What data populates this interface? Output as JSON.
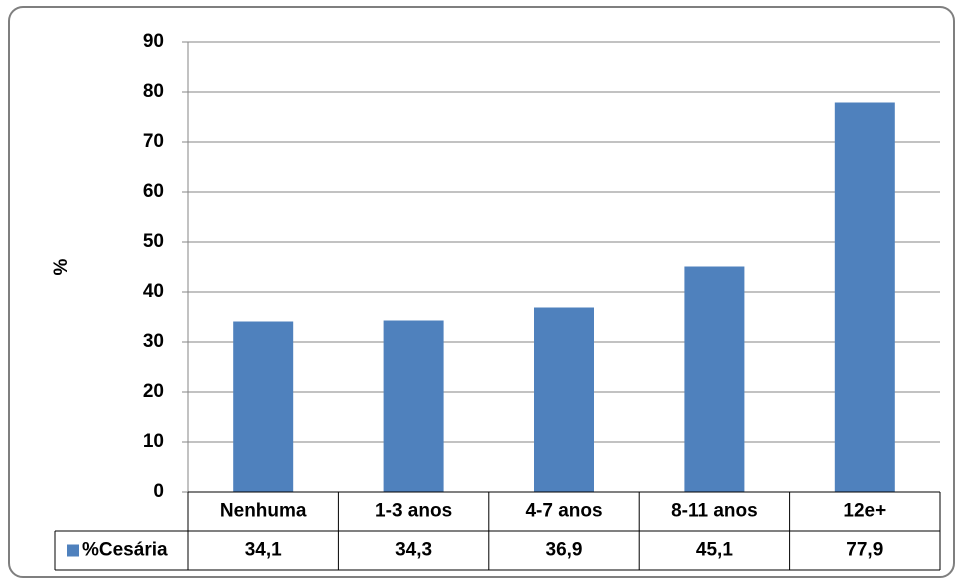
{
  "chart_data": {
    "type": "bar",
    "y_label": "%",
    "categories": [
      "Nenhuma",
      "1-3 anos",
      "4-7 anos",
      "8-11 anos",
      "12e+"
    ],
    "series": [
      {
        "name": "%Cesária",
        "color": "#4f81bd",
        "values": [
          34.1,
          34.3,
          36.9,
          45.1,
          77.9
        ],
        "value_labels": [
          "34,1",
          "34,3",
          "36,9",
          "45,1",
          "77,9"
        ]
      }
    ],
    "ylim": [
      0,
      90
    ],
    "yticks": [
      0,
      10,
      20,
      30,
      40,
      50,
      60,
      70,
      80,
      90
    ],
    "grid": true,
    "data_table": true
  }
}
